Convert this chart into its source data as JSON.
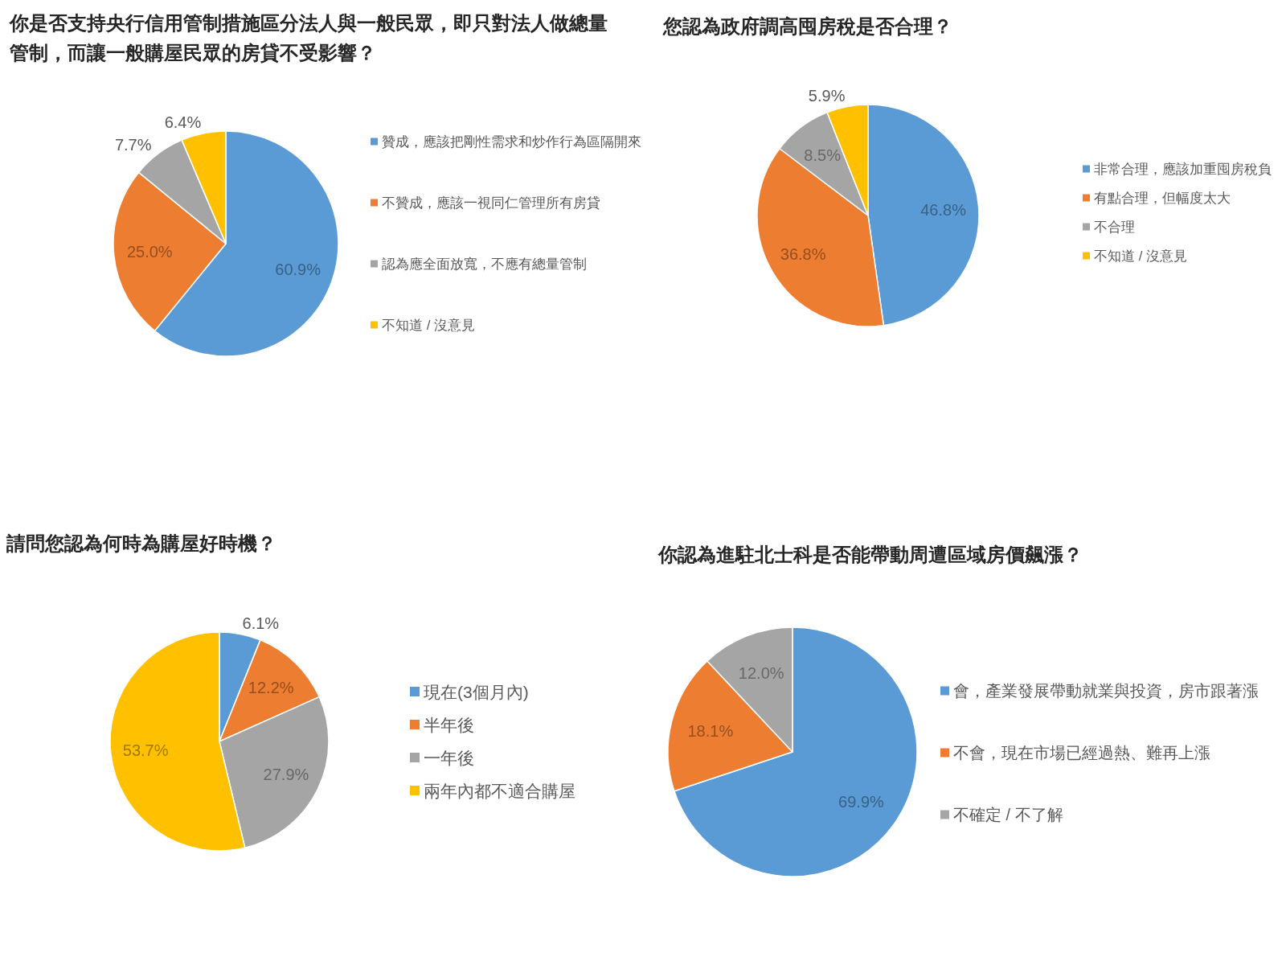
{
  "chart_data": [
    {
      "type": "pie",
      "title": "你是否支持央行信用管制措施區分法人與一般民眾，即只對法人做總量管制，而讓一般購屋民眾的房貸不受影響？",
      "categories": [
        "贊成，應該把剛性需求和炒作行為區隔開來",
        "不贊成，應該一視同仁管理所有房貸",
        "認為應全面放寬，不應有總量管制",
        "不知道 / 沒意見"
      ],
      "values": [
        60.9,
        25.0,
        7.7,
        6.4
      ],
      "value_labels": [
        "60.9%",
        "25.0%",
        "7.7%",
        "6.4%"
      ],
      "colors": [
        "#5b9bd5",
        "#ed7d31",
        "#a5a5a5",
        "#ffc000"
      ],
      "legend": "right"
    },
    {
      "type": "pie",
      "title": "您認為政府調高囤房稅是否合理？",
      "categories": [
        "非常合理，應該加重囤房稅負",
        "有點合理，但幅度太大",
        "不合理",
        "不知道 / 沒意見"
      ],
      "values": [
        46.8,
        36.8,
        8.5,
        5.9
      ],
      "value_labels": [
        "46.8%",
        "36.8%",
        "8.5%",
        "5.9%"
      ],
      "colors": [
        "#5b9bd5",
        "#ed7d31",
        "#a5a5a5",
        "#ffc000"
      ],
      "legend": "right"
    },
    {
      "type": "pie",
      "title": "請問您認為何時為購屋好時機？",
      "categories": [
        "現在(3個月內)",
        "半年後",
        "一年後",
        "兩年內都不適合購屋"
      ],
      "values": [
        6.1,
        12.2,
        27.9,
        53.7
      ],
      "value_labels": [
        "6.1%",
        "12.2%",
        "27.9%",
        "53.7%"
      ],
      "colors": [
        "#5b9bd5",
        "#ed7d31",
        "#a5a5a5",
        "#ffc000"
      ],
      "legend": "right"
    },
    {
      "type": "pie",
      "title": "你認為進駐北士科是否能帶動周遭區域房價飆漲？",
      "categories": [
        "會，產業發展帶動就業與投資，房市跟著漲",
        "不會，現在市場已經過熱、難再上漲",
        "不確定 / 不了解"
      ],
      "values": [
        69.9,
        18.1,
        12.0
      ],
      "value_labels": [
        "69.9%",
        "18.1%",
        "12.0%"
      ],
      "colors": [
        "#5b9bd5",
        "#ed7d31",
        "#a5a5a5"
      ],
      "legend": "right"
    }
  ]
}
